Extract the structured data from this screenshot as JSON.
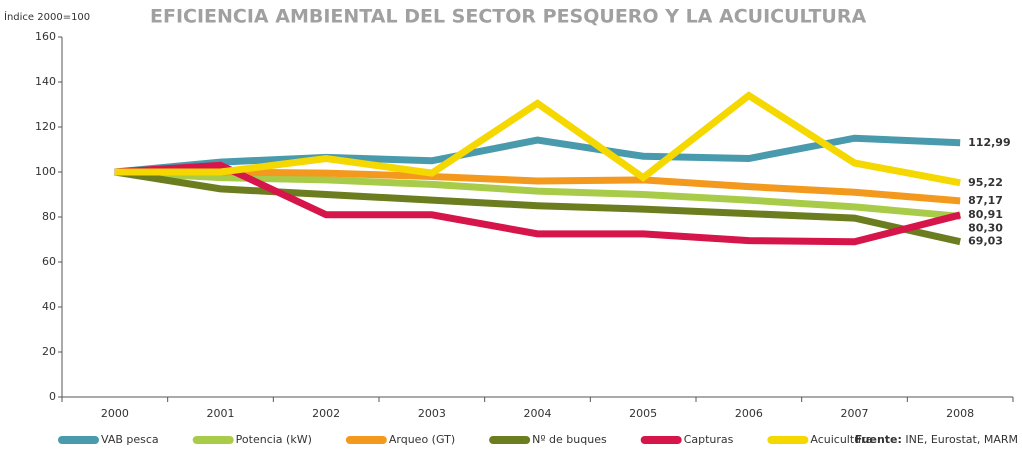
{
  "chart_data": {
    "type": "line",
    "title": "EFICIENCIA AMBIENTAL DEL SECTOR PESQUERO Y LA ACUICULTURA",
    "y_label": "Índice 2000=100",
    "source_label": "Fuente:",
    "source": "INE, Eurostat, MARM",
    "categories": [
      "2000",
      "2001",
      "2002",
      "2003",
      "2004",
      "2005",
      "2006",
      "2007",
      "2008"
    ],
    "ylim": [
      0,
      160
    ],
    "yticks": [
      0,
      20,
      40,
      60,
      80,
      100,
      120,
      140,
      160
    ],
    "grid": false,
    "legend": "bottom",
    "series": [
      {
        "name": "VAB pesca",
        "color": "#4a9aad",
        "values": [
          100,
          104.4,
          106.5,
          105,
          114.2,
          107,
          106,
          115,
          112.99
        ],
        "value_labels": [
          null,
          null,
          null,
          null,
          null,
          null,
          null,
          null,
          "112,99"
        ]
      },
      {
        "name": "Potencia (kW)",
        "color": "#a8cc4a",
        "values": [
          100,
          97.5,
          96.5,
          94.5,
          91.5,
          90,
          87.5,
          84.5,
          80.3
        ],
        "value_labels": [
          null,
          null,
          null,
          null,
          null,
          null,
          null,
          null,
          "80,30"
        ]
      },
      {
        "name": "Arqueo (GT)",
        "color": "#f39a1e",
        "values": [
          100,
          100,
          99.5,
          98,
          96,
          96.5,
          93.5,
          91,
          87.17
        ],
        "value_labels": [
          null,
          null,
          null,
          null,
          null,
          null,
          null,
          null,
          "87,17"
        ]
      },
      {
        "name": "Nº de buques",
        "color": "#6b7d1e",
        "values": [
          100,
          92.5,
          90,
          87.5,
          85,
          83.5,
          81.5,
          79.5,
          69.03
        ],
        "value_labels": [
          null,
          null,
          null,
          null,
          null,
          null,
          null,
          null,
          "69,03"
        ]
      },
      {
        "name": "Capturas",
        "color": "#d6154a",
        "values": [
          100,
          103,
          81,
          81,
          72.5,
          72.5,
          69.5,
          69,
          80.91
        ],
        "value_labels": [
          null,
          null,
          null,
          null,
          null,
          null,
          null,
          null,
          "80,91"
        ]
      },
      {
        "name": "Acuicultura",
        "color": "#f5d800",
        "values": [
          100,
          100,
          106,
          99.5,
          130.5,
          97.5,
          134,
          104,
          95.22
        ],
        "value_labels": [
          null,
          null,
          null,
          null,
          null,
          null,
          null,
          null,
          "95,22"
        ]
      }
    ]
  }
}
